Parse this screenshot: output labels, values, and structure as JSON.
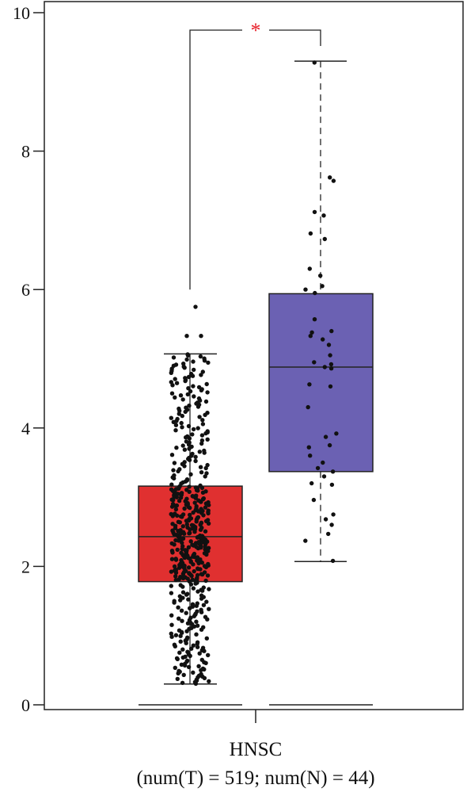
{
  "chart_data": {
    "type": "boxplot",
    "y_ticks": [
      "0",
      "2",
      "4",
      "6",
      "8",
      "10"
    ],
    "ylim": [
      0,
      10
    ],
    "x_category": "HNSC",
    "x_subtitle": "(num(T) = 519; num(N) = 44)",
    "significance_label": "*",
    "significance_color": "#e8202a",
    "grid": false,
    "series": [
      {
        "group": "T",
        "n": 519,
        "color": "#e03030",
        "whisker_low": 0.3,
        "q1": 1.78,
        "median": 2.43,
        "q3": 3.16,
        "whisker_high": 5.07,
        "outliers": [
          5.33,
          5.33,
          5.75
        ]
      },
      {
        "group": "N",
        "n": 44,
        "color": "#6b61b3",
        "whisker_low": 2.07,
        "q1": 3.37,
        "median": 4.88,
        "q3": 5.94,
        "whisker_high": 9.3,
        "points": [
          9.28,
          7.62,
          7.57,
          7.12,
          7.07,
          6.81,
          6.73,
          6.2,
          6.05,
          6.0,
          5.95,
          5.57,
          5.4,
          5.38,
          5.33,
          5.28,
          5.05,
          4.92,
          4.88,
          4.86,
          4.63,
          4.6,
          4.3,
          3.87,
          3.75,
          3.72,
          3.5,
          3.42,
          3.37,
          3.3,
          3.2,
          3.18,
          2.96,
          2.75,
          2.68,
          2.6,
          2.47,
          2.37,
          2.08,
          3.92,
          5.2,
          4.95,
          3.6,
          6.3
        ]
      }
    ]
  }
}
